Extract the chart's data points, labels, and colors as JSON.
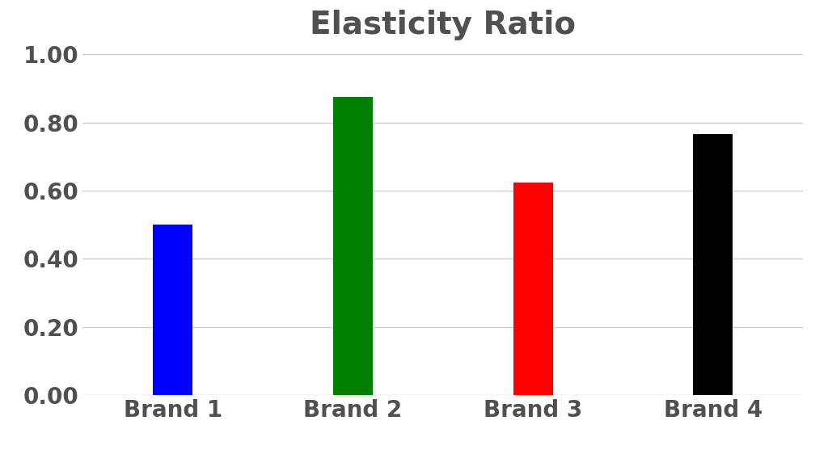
{
  "title": "Elasticity Ratio",
  "categories": [
    "Brand 1",
    "Brand 2",
    "Brand 3",
    "Brand 4"
  ],
  "values": [
    0.5,
    0.875,
    0.625,
    0.765
  ],
  "bar_colors": [
    "#0000FF",
    "#008000",
    "#FF0000",
    "#000000"
  ],
  "ylim": [
    0,
    1.0
  ],
  "yticks": [
    0.0,
    0.2,
    0.4,
    0.6,
    0.8,
    1.0
  ],
  "title_fontsize": 28,
  "tick_fontsize": 20,
  "bar_width": 0.22,
  "background_color": "#ffffff",
  "grid_color": "#cccccc",
  "text_color": "#505050"
}
